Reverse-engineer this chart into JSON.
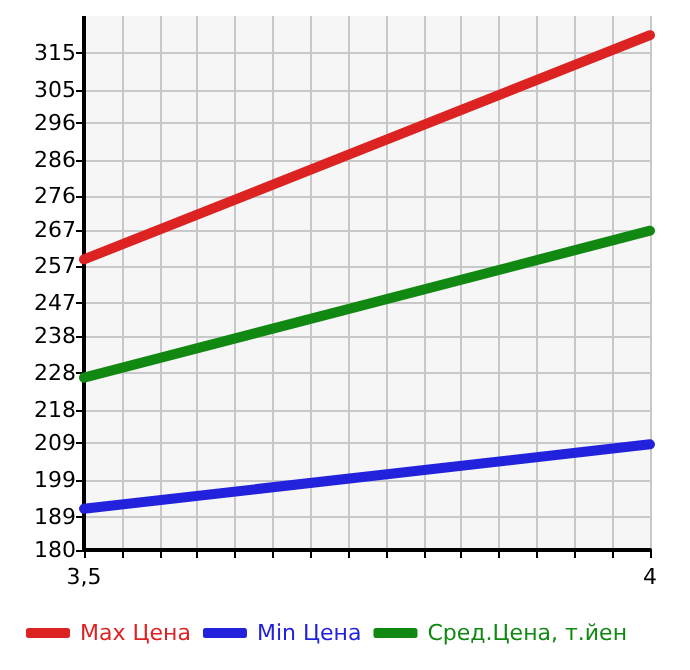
{
  "chart_data": {
    "type": "line",
    "x": [
      3.5,
      4
    ],
    "series": [
      {
        "name": "Max Цена",
        "color": "#dd2222",
        "values": [
          258.9,
          319.8
        ]
      },
      {
        "name": "Min Цена",
        "color": "#2222dd",
        "values": [
          191.2,
          208.7
        ]
      },
      {
        "name": "Сред.Цена, т.йен",
        "color": "#118811",
        "values": [
          226.8,
          266.7
        ]
      }
    ],
    "xlim": [
      3.5,
      4
    ],
    "xticks": [
      {
        "value": 3.5,
        "label": "3,5"
      },
      {
        "value": 3.5333,
        "label": null
      },
      {
        "value": 3.5667,
        "label": null
      },
      {
        "value": 3.6,
        "label": null
      },
      {
        "value": 3.6333,
        "label": null
      },
      {
        "value": 3.6667,
        "label": null
      },
      {
        "value": 3.7,
        "label": null
      },
      {
        "value": 3.7333,
        "label": null
      },
      {
        "value": 3.7667,
        "label": null
      },
      {
        "value": 3.8,
        "label": null
      },
      {
        "value": 3.8333,
        "label": null
      },
      {
        "value": 3.8667,
        "label": null
      },
      {
        "value": 3.9,
        "label": null
      },
      {
        "value": 3.9333,
        "label": null
      },
      {
        "value": 3.9667,
        "label": null
      },
      4
    ],
    "ylim": [
      180,
      325
    ],
    "yticks": [
      180,
      189,
      199,
      209,
      218,
      228,
      238,
      247,
      257,
      267,
      276,
      286,
      296,
      305,
      315
    ],
    "grid": true,
    "legend": "bottom",
    "marker": "none",
    "line_style": "solid"
  }
}
